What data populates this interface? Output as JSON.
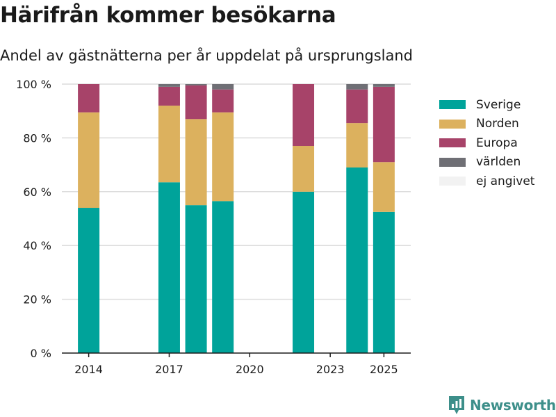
{
  "title": "Härifrån kommer besökarna",
  "subtitle": "Andel av gästnätterna per år uppdelat på ursprungsland",
  "brand": "Newsworthy",
  "chart_data": {
    "type": "bar",
    "stacked": true,
    "categories": [
      2014,
      2017,
      2018,
      2019,
      2022,
      2024,
      2025
    ],
    "x_ticks": [
      "2014",
      "2017",
      "2020",
      "2023",
      "2025"
    ],
    "y_ticks": [
      "0 %",
      "20 %",
      "40 %",
      "60 %",
      "80 %",
      "100 %"
    ],
    "ylim": [
      0,
      100
    ],
    "grid": true,
    "legend_position": "right",
    "series": [
      {
        "name": "Sverige",
        "color": "#00a39a",
        "values": [
          54,
          63.5,
          55,
          56.5,
          60,
          69,
          52.5
        ]
      },
      {
        "name": "Norden",
        "color": "#dcb15e",
        "values": [
          35.5,
          28.5,
          32,
          33,
          17,
          16.5,
          18.5
        ]
      },
      {
        "name": "Europa",
        "color": "#a74369",
        "values": [
          10.5,
          7,
          12.5,
          8.5,
          23,
          12.5,
          28
        ]
      },
      {
        "name": "världen",
        "color": "#6f6f75",
        "values": [
          0,
          1,
          0.5,
          2,
          0,
          2,
          1
        ]
      },
      {
        "name": "ej angivet",
        "color": "#f2f2f2",
        "values": [
          0,
          0,
          0,
          0,
          0,
          0,
          0
        ]
      }
    ]
  }
}
